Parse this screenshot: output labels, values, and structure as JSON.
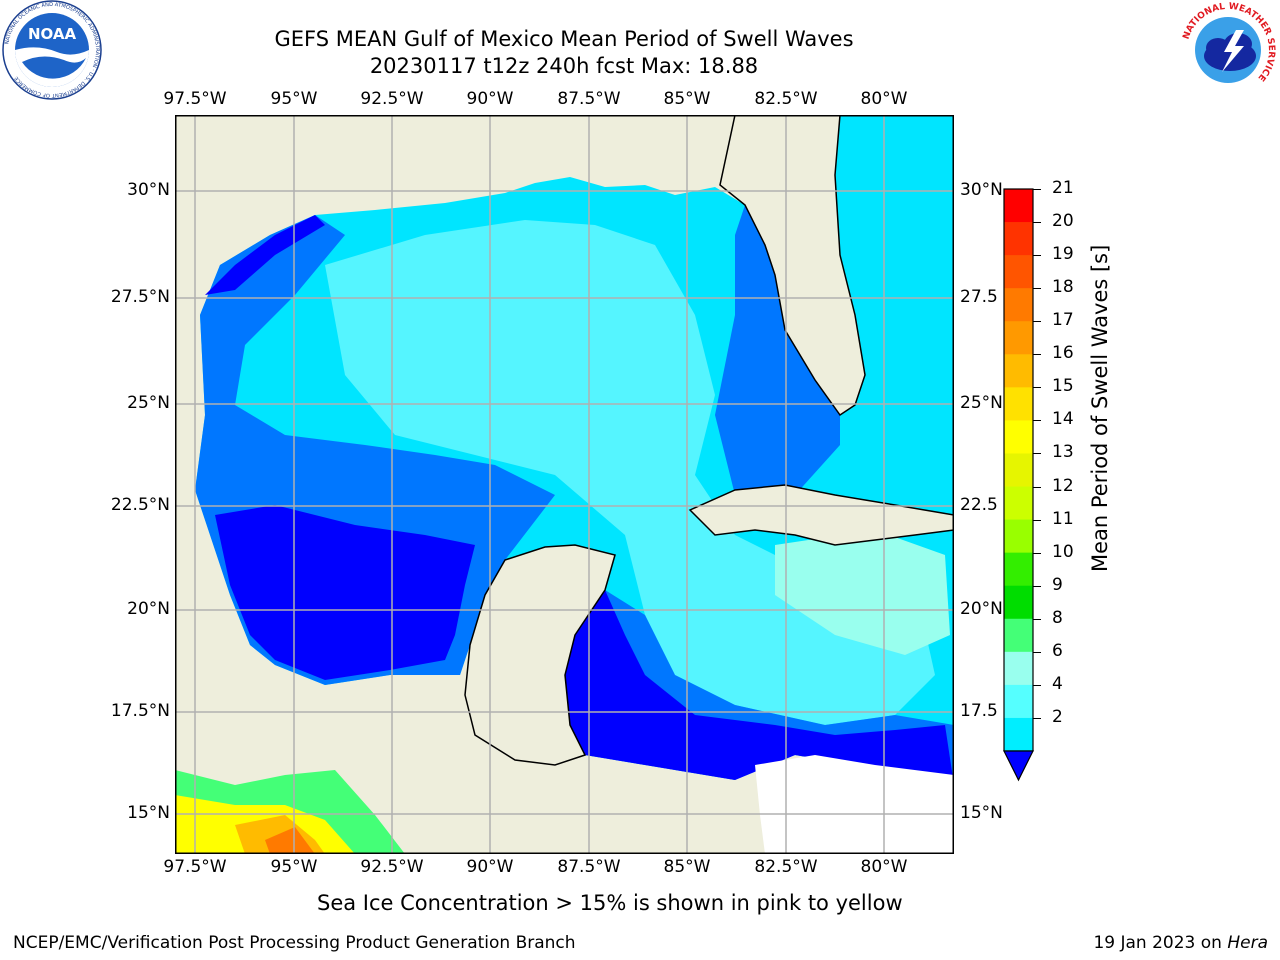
{
  "header": {
    "title_line1": "GEFS MEAN Gulf of Mexico Mean Period of Swell Waves",
    "title_line2": "20230117 t12z 240h fcst   Max: 18.88"
  },
  "logos": {
    "left": {
      "name": "noaa-logo",
      "text": "NOAA",
      "ring_text": "NATIONAL OCEANIC AND ATMOSPHERIC ADMINISTRATION · U.S. DEPARTMENT OF COMMERCE"
    },
    "right": {
      "name": "nws-logo",
      "ring_text": "NATIONAL WEATHER SERVICE"
    }
  },
  "map": {
    "lon_labels": [
      "97.5°W",
      "95°W",
      "92.5°W",
      "90°W",
      "87.5°W",
      "85°W",
      "82.5°W",
      "80°W"
    ],
    "lat_labels": [
      "30°N",
      "27.5°N",
      "25°N",
      "22.5°N",
      "20°N",
      "17.5°N",
      "15°N"
    ],
    "right_lat_labels": [
      "30°N",
      "27.5",
      "25°N",
      "22.5",
      "20°N",
      "17.5",
      "15°N"
    ],
    "land_color": "#eeeedc",
    "grid_color": "#b0b0b0"
  },
  "colorbar": {
    "label": "Mean Period of Swell Waves [s]",
    "ticks": [
      "21",
      "20",
      "19",
      "18",
      "17",
      "16",
      "15",
      "14",
      "13",
      "12",
      "11",
      "10",
      "9",
      "8",
      "6",
      "4",
      "2"
    ],
    "colors": [
      "#ff0000",
      "#ff3300",
      "#ff5500",
      "#ff7a00",
      "#ff9900",
      "#ffbb00",
      "#ffe100",
      "#ffff00",
      "#e6f500",
      "#ccff00",
      "#99ff00",
      "#33ee00",
      "#00dd00",
      "#44ff77",
      "#99ffee",
      "#55ffff",
      "#00eeff",
      "#0077ff",
      "#0000ff"
    ]
  },
  "note": "Sea Ice Concentration > 15% is shown in pink to yellow",
  "footer": {
    "left": "NCEP/EMC/Verification Post Processing Product Generation Branch",
    "right_prefix": "19 Jan 2023 on ",
    "right_host": "Hera"
  }
}
